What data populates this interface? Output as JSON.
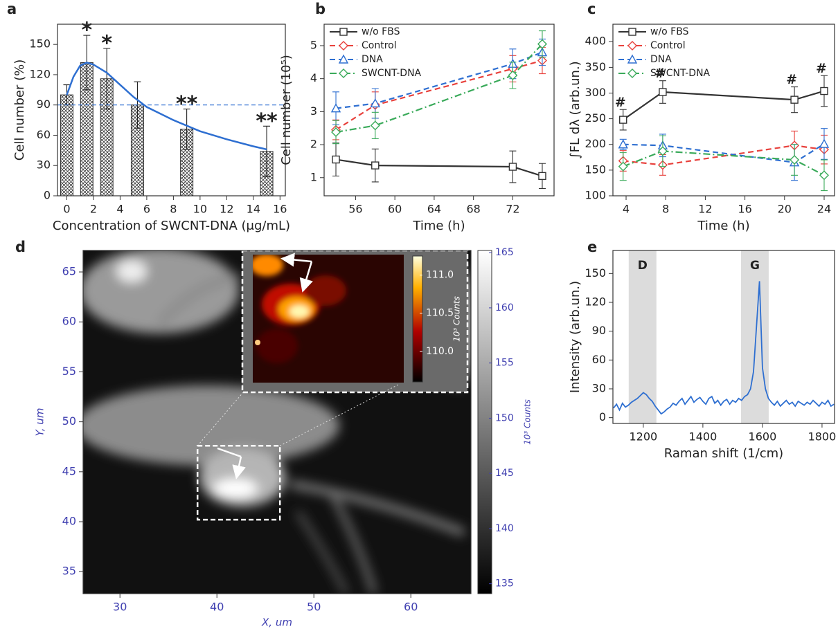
{
  "chart_data": [
    {
      "panel": "a",
      "type": "bar",
      "x": [
        0,
        1.5,
        3,
        5.3,
        9,
        15
      ],
      "values": [
        100,
        132,
        116,
        90,
        66,
        44
      ],
      "errors": [
        10,
        27,
        30,
        23,
        20,
        25
      ],
      "significance": [
        null,
        "*",
        "*",
        null,
        "**",
        "**"
      ],
      "color": "#333333",
      "fit": {
        "color": "#2e6fd1",
        "x": [
          0,
          0.5,
          1,
          1.5,
          2,
          3,
          4,
          5,
          6,
          8,
          10,
          12,
          14,
          15
        ],
        "values": [
          100,
          118,
          129,
          132,
          130,
          122,
          110,
          98,
          88,
          75,
          64,
          56,
          49,
          46
        ]
      },
      "reference_line": 90,
      "xlim": [
        -0.7,
        16.4
      ],
      "ylim": [
        0,
        170
      ],
      "xticks": [
        0,
        2,
        4,
        6,
        8,
        10,
        12,
        14,
        16
      ],
      "yticks": [
        0,
        30,
        60,
        90,
        120,
        150
      ],
      "xlabel": "Concentration of SWCNT-DNA (μg/mL)",
      "ylabel": "Cell number (%)"
    },
    {
      "panel": "b",
      "type": "line",
      "legend": "upper left",
      "x": [
        54,
        58,
        72,
        75
      ],
      "series": [
        {
          "name": "w/o FBS",
          "color": "#333333",
          "marker": "square",
          "dash": "solid",
          "values": [
            1.55,
            1.37,
            1.33,
            1.05
          ],
          "errors": [
            0.5,
            0.5,
            0.48,
            0.38
          ]
        },
        {
          "name": "Control",
          "color": "#e8413c",
          "marker": "diamond",
          "dash": "dash",
          "values": [
            2.45,
            3.2,
            4.3,
            4.55
          ],
          "errors": [
            0.3,
            0.4,
            0.4,
            0.4
          ]
        },
        {
          "name": "DNA",
          "color": "#2e6fd1",
          "marker": "triangle",
          "dash": "dash",
          "values": [
            3.1,
            3.25,
            4.45,
            4.8
          ],
          "errors": [
            0.5,
            0.45,
            0.45,
            0.4
          ]
        },
        {
          "name": "SWCNT-DNA",
          "color": "#3aaa5a",
          "marker": "diamond",
          "dash": "dashdot",
          "values": [
            2.38,
            2.58,
            4.1,
            5.05
          ],
          "errors": [
            0.35,
            0.4,
            0.4,
            0.4
          ]
        }
      ],
      "xlim": [
        52.8,
        76.2
      ],
      "ylim": [
        0.45,
        5.65
      ],
      "xticks": [
        56,
        60,
        64,
        68,
        72
      ],
      "yticks": [
        1,
        2,
        3,
        4,
        5
      ],
      "xlabel": "Time (h)",
      "ylabel": "Cell number (10⁵)"
    },
    {
      "panel": "c",
      "type": "line",
      "legend": "upper left",
      "x": [
        3.7,
        7.7,
        21,
        24
      ],
      "series": [
        {
          "name": "w/o FBS",
          "color": "#333333",
          "marker": "square",
          "dash": "solid",
          "values": [
            248,
            302,
            287,
            304
          ],
          "errors": [
            20,
            22,
            25,
            30
          ],
          "significance": [
            "#",
            "#",
            "#",
            "#"
          ]
        },
        {
          "name": "Control",
          "color": "#e8413c",
          "marker": "diamond",
          "dash": "dash",
          "values": [
            168,
            160,
            198,
            190
          ],
          "errors": [
            20,
            20,
            28,
            28
          ]
        },
        {
          "name": "DNA",
          "color": "#2e6fd1",
          "marker": "triangle",
          "dash": "dash",
          "values": [
            200,
            198,
            165,
            201
          ],
          "errors": [
            10,
            22,
            35,
            30
          ]
        },
        {
          "name": "SWCNT-DNA",
          "color": "#3aaa5a",
          "marker": "diamond",
          "dash": "dashdot",
          "values": [
            157,
            187,
            170,
            140
          ],
          "errors": [
            27,
            30,
            30,
            30
          ]
        }
      ],
      "xlim": [
        2.67,
        25.05
      ],
      "ylim": [
        100,
        434
      ],
      "xticks": [
        4,
        8,
        12,
        16,
        20,
        24
      ],
      "yticks": [
        100,
        150,
        200,
        250,
        300,
        350,
        400
      ],
      "xlabel": "Time (h)",
      "ylabel": "∫FL dλ (arb.un.)"
    },
    {
      "panel": "d",
      "type": "image",
      "tick_color": "#3f3fb0",
      "xlim": [
        26.2,
        66.2
      ],
      "ylim": [
        32.8,
        67.15
      ],
      "xticks": [
        30,
        40,
        50,
        60
      ],
      "yticks": [
        35,
        40,
        45,
        50,
        55,
        60,
        65
      ],
      "xlabel": "X, um",
      "ylabel": "Y, um",
      "zoom_region": {
        "x": [
          38,
          46.5
        ],
        "y": [
          40.2,
          47.6
        ]
      },
      "colorbar": {
        "lim": [
          134.1,
          165.2
        ],
        "ticks": [
          135,
          140,
          145,
          150,
          155,
          160,
          165
        ],
        "label": "10³ Counts"
      },
      "inset_colorbar": {
        "lim": [
          109.6,
          111.25
        ],
        "ticks": [
          {
            "value": 110,
            "label": "110.0"
          },
          110.5,
          {
            "value": 111,
            "label": "111.0"
          }
        ],
        "label": "10³ Counts"
      }
    },
    {
      "panel": "e",
      "type": "line",
      "x": [
        1100,
        1110,
        1120,
        1130,
        1140,
        1150,
        1160,
        1170,
        1180,
        1190,
        1200,
        1210,
        1220,
        1230,
        1240,
        1250,
        1260,
        1270,
        1280,
        1290,
        1300,
        1310,
        1320,
        1330,
        1340,
        1350,
        1360,
        1370,
        1380,
        1390,
        1400,
        1410,
        1420,
        1430,
        1440,
        1450,
        1460,
        1470,
        1480,
        1490,
        1500,
        1510,
        1520,
        1530,
        1540,
        1550,
        1560,
        1570,
        1580,
        1590,
        1600,
        1610,
        1620,
        1630,
        1640,
        1650,
        1660,
        1670,
        1680,
        1690,
        1700,
        1710,
        1720,
        1730,
        1740,
        1750,
        1760,
        1770,
        1780,
        1790,
        1800,
        1810,
        1820,
        1830,
        1840
      ],
      "series": [
        {
          "color": "#2e6fd1",
          "values": [
            10,
            14,
            8,
            15,
            11,
            13,
            16,
            18,
            20,
            23,
            26,
            24,
            20,
            17,
            12,
            8,
            4,
            6,
            9,
            11,
            15,
            13,
            17,
            20,
            14,
            18,
            22,
            16,
            19,
            21,
            17,
            14,
            20,
            22,
            15,
            18,
            13,
            17,
            19,
            14,
            18,
            16,
            20,
            18,
            22,
            24,
            30,
            48,
            95,
            142,
            52,
            30,
            20,
            16,
            13,
            17,
            12,
            15,
            18,
            14,
            16,
            12,
            17,
            15,
            13,
            16,
            14,
            18,
            15,
            12,
            16,
            14,
            18,
            12,
            14
          ]
        }
      ],
      "bands": [
        {
          "label": "D",
          "range": [
            1151,
            1244
          ]
        },
        {
          "label": "G",
          "range": [
            1528,
            1621
          ]
        }
      ],
      "xlim": [
        1098,
        1842
      ],
      "ylim": [
        -6,
        174
      ],
      "xticks": [
        1200,
        1400,
        1600,
        1800
      ],
      "yticks": [
        0,
        30,
        60,
        90,
        120,
        150
      ],
      "xlabel": "Raman shift (1/cm)",
      "ylabel": "Intensity (arb.un.)"
    }
  ]
}
